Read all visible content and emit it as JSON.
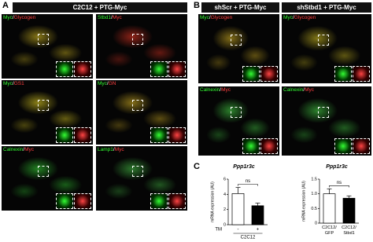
{
  "panels": {
    "a": "A",
    "b": "B",
    "c": "C"
  },
  "panel_a": {
    "header": "C2C12 + PTG-Myc",
    "images": [
      {
        "label": [
          "Myc",
          "/",
          "Glycogen"
        ]
      },
      {
        "label": [
          "Stbd1",
          "/",
          "Myc"
        ]
      },
      {
        "label": [
          "Myc",
          "/",
          "GS1"
        ]
      },
      {
        "label": [
          "Myc",
          "/",
          "GN"
        ]
      },
      {
        "label": [
          "Calnexin",
          "/",
          "Myc"
        ]
      },
      {
        "label": [
          "Lamp1",
          "/",
          "Myc"
        ]
      }
    ]
  },
  "panel_b": {
    "headers": [
      "shScr + PTG-Myc",
      "shStbd1 + PTG-Myc"
    ],
    "row_labels": [
      [
        "Myc",
        "/",
        "Glycogen"
      ],
      [
        "Calnexin",
        "/",
        "Myc"
      ]
    ]
  },
  "chart_data": [
    {
      "type": "bar",
      "title": "Ppp1r3c",
      "y_label": "mRNA expression (AU)",
      "categories": [
        "-",
        "+"
      ],
      "group_label": "TM",
      "group": "C2C12",
      "values": [
        4.1,
        2.5
      ],
      "errors": [
        0.8,
        0.35
      ],
      "colors": [
        "#ffffff",
        "#000000"
      ],
      "ylim": [
        0,
        6
      ],
      "yticks": [
        0,
        2,
        4,
        6
      ],
      "annotation": "ns"
    },
    {
      "type": "bar",
      "title": "Ppp1r3c",
      "y_label": "mRNA expression (AU)",
      "categories": [
        "C2C12/\nGFP",
        "C2C12/\nStbd1"
      ],
      "values": [
        1.0,
        0.85
      ],
      "errors": [
        0.17,
        0.08
      ],
      "colors": [
        "#ffffff",
        "#000000"
      ],
      "ylim": [
        0,
        1.5
      ],
      "yticks": [
        0,
        0.5,
        {
          "value": 1,
          "label": "1.0"
        },
        1.5
      ],
      "annotation": "ns"
    }
  ]
}
